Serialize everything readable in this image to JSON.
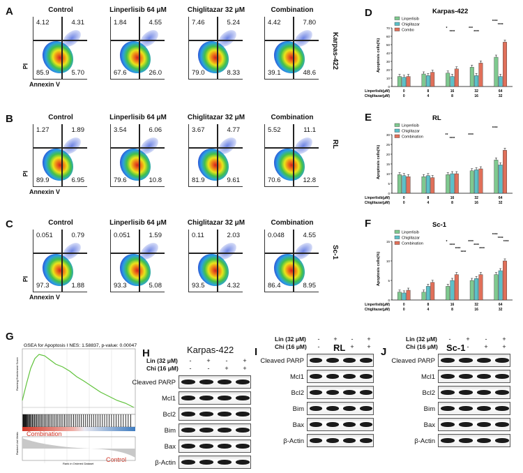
{
  "panels": {
    "A": "A",
    "B": "B",
    "C": "C",
    "D": "D",
    "E": "E",
    "F": "F",
    "G": "G",
    "H": "H",
    "I": "I",
    "J": "J"
  },
  "flow": {
    "axis_y": "PI",
    "axis_x": "Annexin V",
    "rows": [
      {
        "cell_line": "Karpas-422",
        "plots": [
          {
            "title": "Control",
            "ul": "4.12",
            "ur": "4.31",
            "ll": "85.9",
            "lr": "5.70"
          },
          {
            "title": "Linperlisib 64 μM",
            "ul": "1.84",
            "ur": "4.55",
            "ll": "67.6",
            "lr": "26.0"
          },
          {
            "title": "Chiglitazar 32 μM",
            "ul": "7.46",
            "ur": "5.24",
            "ll": "79.0",
            "lr": "8.33"
          },
          {
            "title": "Combination",
            "ul": "4.42",
            "ur": "7.80",
            "ll": "39.1",
            "lr": "48.6"
          }
        ]
      },
      {
        "cell_line": "RL",
        "plots": [
          {
            "title": "Control",
            "ul": "1.27",
            "ur": "1.89",
            "ll": "89.9",
            "lr": "6.95"
          },
          {
            "title": "Linperlisib 64 μM",
            "ul": "3.54",
            "ur": "6.06",
            "ll": "79.6",
            "lr": "10.8"
          },
          {
            "title": "Chiglitazar  32 μM",
            "ul": "3.67",
            "ur": "4.77",
            "ll": "81.9",
            "lr": "9.61"
          },
          {
            "title": "Combination",
            "ul": "5.52",
            "ur": "11.1",
            "ll": "70.6",
            "lr": "12.8"
          }
        ]
      },
      {
        "cell_line": "Sc-1",
        "plots": [
          {
            "title": "Control",
            "ul": "0.051",
            "ur": "0.79",
            "ll": "97.3",
            "lr": "1.88"
          },
          {
            "title": "Linperlisib 64 μM",
            "ul": "0.051",
            "ur": "1.59",
            "ll": "93.3",
            "lr": "5.08"
          },
          {
            "title": "Chiglitazar  32 μM",
            "ul": "0.11",
            "ur": "2.03",
            "ll": "93.5",
            "lr": "4.32"
          },
          {
            "title": "Combination",
            "ul": "0.048",
            "ur": "4.55",
            "ll": "86.4",
            "lr": "8.95"
          }
        ]
      }
    ]
  },
  "chart_data": [
    {
      "type": "bar",
      "title": "Karpas-422",
      "ylabel": "Apoptosis cells(%)",
      "ylim": [
        0,
        70
      ],
      "yticks": [
        "0",
        "10",
        "20",
        "30",
        "40",
        "50",
        "60",
        "70"
      ],
      "x_row1_label": "Linperlisib(μM)",
      "x_row2_label": "Chiglitazar(μM)",
      "x_row1": [
        "0",
        "8",
        "16",
        "32",
        "64"
      ],
      "x_row2": [
        "0",
        "4",
        "8",
        "16",
        "32"
      ],
      "legend": [
        "Linperlisib",
        "Chiglitazar",
        "Combo"
      ],
      "series": [
        {
          "name": "Linperlisib",
          "color": "#7fc98f",
          "values": [
            12,
            15,
            16,
            23,
            35
          ]
        },
        {
          "name": "Chiglitazar",
          "color": "#5cc0c8",
          "values": [
            11,
            13,
            12,
            13,
            12
          ]
        },
        {
          "name": "Combo",
          "color": "#e0705a",
          "values": [
            12,
            17,
            21,
            28,
            53
          ]
        }
      ],
      "significance": [
        "*",
        "***",
        "****",
        "****",
        "****",
        "****"
      ]
    },
    {
      "type": "bar",
      "title": "RL",
      "ylabel": "Apoptosis cells(%)",
      "ylim": [
        0,
        30
      ],
      "yticks": [
        "0",
        "5",
        "10",
        "15",
        "20",
        "25",
        "30"
      ],
      "x_row1_label": "Linperlisib(μM)",
      "x_row2_label": "Chiglitazar(μM)",
      "x_row1": [
        "0",
        "8",
        "16",
        "32",
        "64"
      ],
      "x_row2": [
        "0",
        "4",
        "8",
        "16",
        "32"
      ],
      "legend": [
        "Linperlisib",
        "Chiglitazar",
        "Combination"
      ],
      "series": [
        {
          "name": "Linperlisib",
          "color": "#7fc98f",
          "values": [
            9.5,
            8.5,
            9.5,
            11.5,
            17
          ]
        },
        {
          "name": "Chiglitazar",
          "color": "#5cc0c8",
          "values": [
            9,
            9,
            10,
            12,
            14.5
          ]
        },
        {
          "name": "Combination",
          "color": "#e0705a",
          "values": [
            8.5,
            8,
            10,
            12.5,
            22
          ]
        }
      ],
      "significance": [
        "**",
        "****",
        "****",
        "****"
      ]
    },
    {
      "type": "bar",
      "title": "Sc-1",
      "ylabel": "Apoptosis cells(%)",
      "ylim": [
        0,
        15
      ],
      "yticks": [
        "0",
        "5",
        "10",
        "15"
      ],
      "x_row1_label": "Linperlisib(μM)",
      "x_row2_label": "Chiglitazar(μM)",
      "x_row1": [
        "0",
        "8",
        "16",
        "32",
        "64"
      ],
      "x_row2": [
        "0",
        "4",
        "8",
        "16",
        "32"
      ],
      "legend": [
        "Linperlisib",
        "Chiglitazar",
        "Combination"
      ],
      "series": [
        {
          "name": "Linperlisib",
          "color": "#7fc98f",
          "values": [
            2,
            2,
            3.5,
            5,
            6.5
          ]
        },
        {
          "name": "Chiglitazar",
          "color": "#5cc0c8",
          "values": [
            1.8,
            3.5,
            5,
            5.5,
            7.5
          ]
        },
        {
          "name": "Combination",
          "color": "#e0705a",
          "values": [
            2.5,
            4.5,
            6.5,
            6.5,
            10
          ]
        }
      ],
      "significance": [
        "*",
        "****",
        "****",
        "****",
        "****",
        "****",
        "****",
        "****",
        "****",
        "****"
      ]
    }
  ],
  "gsea": {
    "title": "GSEA for Apoptosis I NES: 1.58837, p-value: 0.00047",
    "ylabel_top": "Running Enrichment Score",
    "ylabel_bottom": "Ranked List Metric",
    "xlabel": "Rank in Ordered Dataset",
    "label_combination": "Combination",
    "label_control": "Control",
    "line_color": "#5fc23a"
  },
  "blots": [
    {
      "cell_line": "Karpas-422",
      "lin_label": "Lin (32 μM)",
      "chi_label": "Chi (16 μM)",
      "lin": [
        "-",
        "+",
        "-",
        "+"
      ],
      "chi": [
        "-",
        "-",
        "+",
        "+"
      ],
      "proteins": [
        "Cleaved PARP",
        "Mcl1",
        "Bcl2",
        "Bim",
        "Bax",
        "β-Actin"
      ]
    },
    {
      "cell_line": "RL",
      "lin_label": "Lin (32 μM)",
      "chi_label": "Chi (16 μM)",
      "lin": [
        "-",
        "+",
        "-",
        "+"
      ],
      "chi": [
        "-",
        "-",
        "+",
        "+"
      ],
      "proteins": [
        "Cleaved PARP",
        "Mcl1",
        "Bcl2",
        "Bim",
        "Bax",
        "β-Actin"
      ]
    },
    {
      "cell_line": "Sc-1",
      "lin_label": "Lin (32 μM)",
      "chi_label": "Chi (16 μM)",
      "lin": [
        "-",
        "+",
        "-",
        "+"
      ],
      "chi": [
        "-",
        "-",
        "+",
        "+"
      ],
      "proteins": [
        "Cleaved PARP",
        "Mcl1",
        "Bcl2",
        "Bim",
        "Bax",
        "β-Actin"
      ]
    }
  ]
}
